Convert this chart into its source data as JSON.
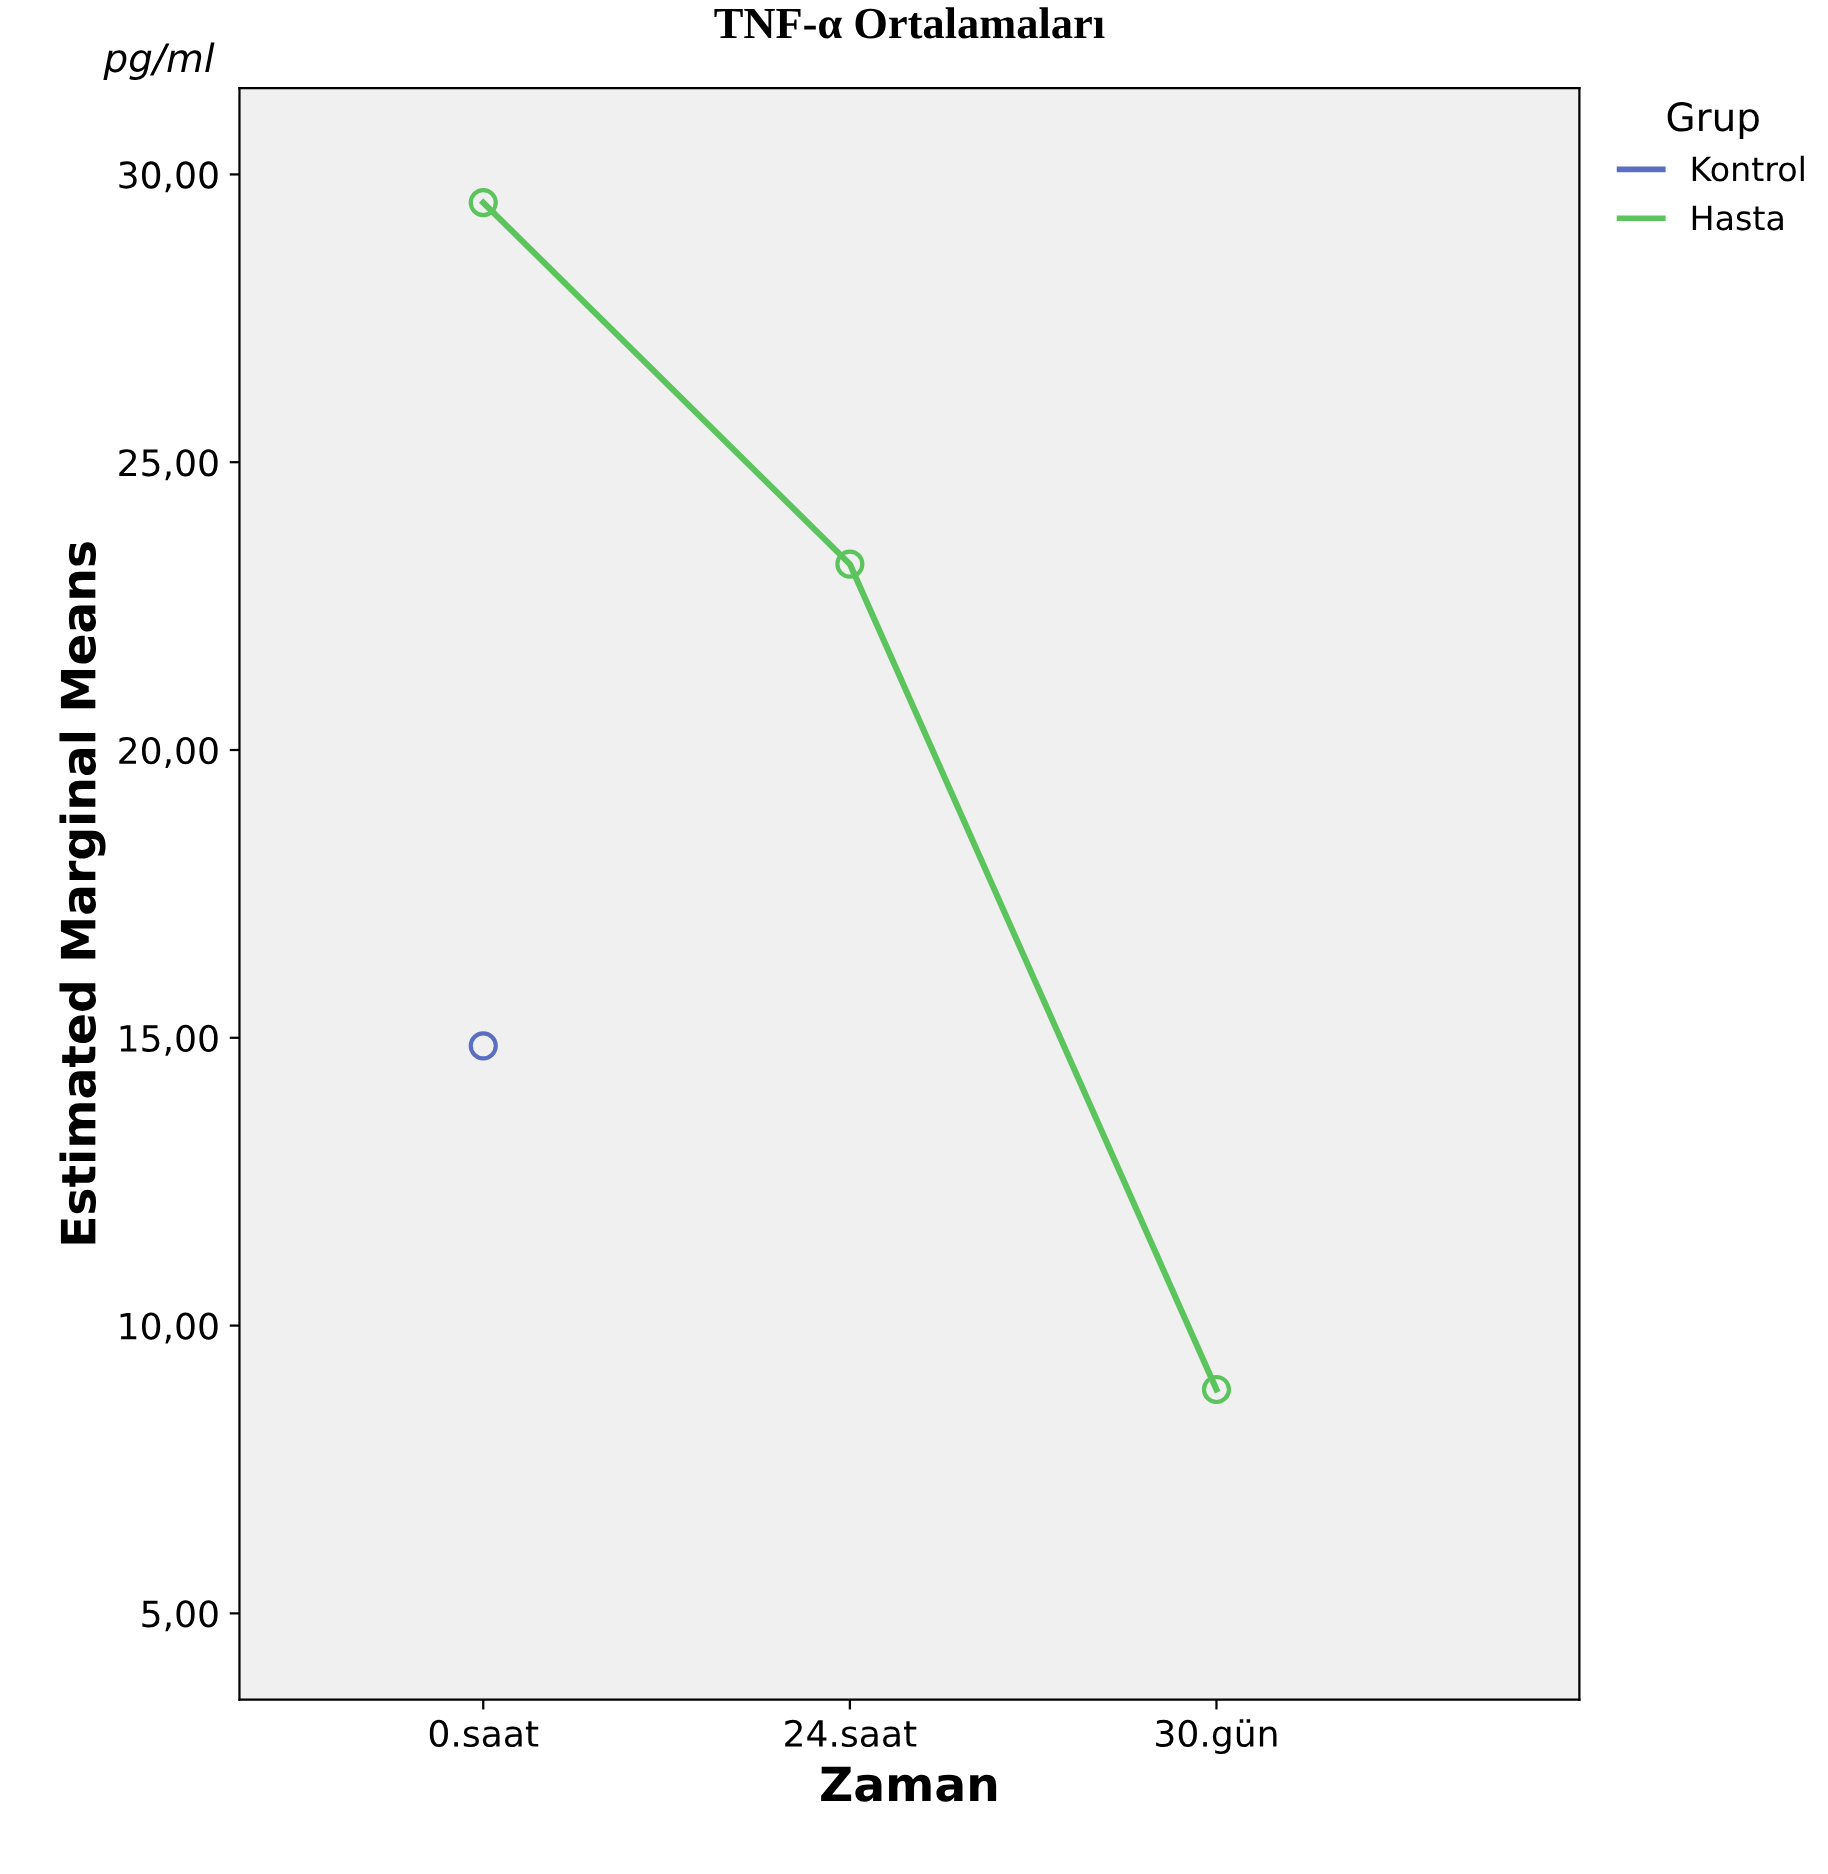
{
  "chart_data": {
    "type": "line",
    "title": "TNF-α Ortalamaları",
    "xlabel": "Zaman",
    "ylabel": "Estimated Marginal Means",
    "legend_title": "Grup",
    "annotations": [
      "pg/ml"
    ],
    "categories": [
      "0.saat",
      "24.saat",
      "30.gün"
    ],
    "series": [
      {
        "name": "Kontrol",
        "color": "#5b6fc2",
        "values": [
          14.86,
          null,
          null
        ]
      },
      {
        "name": "Hasta",
        "color": "#5cc45c",
        "values": [
          29.51,
          23.23,
          8.89
        ]
      }
    ],
    "ylim": [
      3.5,
      31.5
    ],
    "yticks": [
      {
        "value": 5,
        "label": "5,00"
      },
      {
        "value": 10,
        "label": "10,00"
      },
      {
        "value": 15,
        "label": "15,00"
      },
      {
        "value": 20,
        "label": "20,00"
      },
      {
        "value": 25,
        "label": "25,00"
      },
      {
        "value": 30,
        "label": "30,00"
      }
    ],
    "marker": "circle",
    "line_style": "solid",
    "grid": false,
    "legend": "top right"
  }
}
